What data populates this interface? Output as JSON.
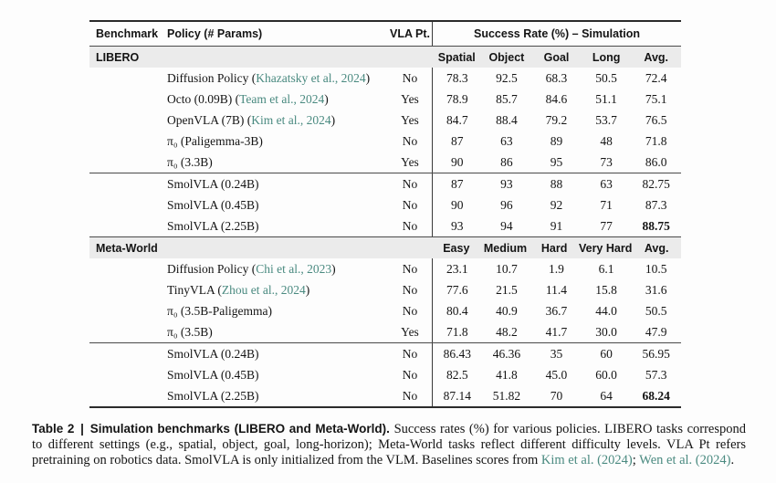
{
  "colors": {
    "link_teal": "#4a8a80",
    "band_gray": "#ebebeb"
  },
  "table": {
    "header": {
      "benchmark": "Benchmark",
      "policy": "Policy (# Params)",
      "vla": "VLA Pt.",
      "success": "Success Rate (%) – Simulation"
    },
    "sections": [
      {
        "band_label": "LIBERO",
        "columns": [
          "Spatial",
          "Object",
          "Goal",
          "Long",
          "Avg."
        ],
        "groups": [
          {
            "rows": [
              {
                "policy": "Diffusion Policy",
                "cite": "Khazatsky et al., 2024",
                "vla": "No",
                "values": [
                  "78.3",
                  "92.5",
                  "68.3",
                  "50.5",
                  "72.4"
                ]
              },
              {
                "policy": "Octo (0.09B)",
                "cite": "Team et al., 2024",
                "vla": "Yes",
                "values": [
                  "78.9",
                  "85.7",
                  "84.6",
                  "51.1",
                  "75.1"
                ]
              },
              {
                "policy": "OpenVLA (7B)",
                "cite": "Kim et al., 2024",
                "vla": "Yes",
                "values": [
                  "84.7",
                  "88.4",
                  "79.2",
                  "53.7",
                  "76.5"
                ]
              },
              {
                "policy": "π₀ (Paligemma-3B)",
                "vla": "No",
                "values": [
                  "87",
                  "63",
                  "89",
                  "48",
                  "71.8"
                ]
              },
              {
                "policy": "π₀ (3.3B)",
                "vla": "Yes",
                "values": [
                  "90",
                  "86",
                  "95",
                  "73",
                  "86.0"
                ]
              }
            ]
          },
          {
            "rows": [
              {
                "policy": "SmolVLA (0.24B)",
                "vla": "No",
                "values": [
                  "87",
                  "93",
                  "88",
                  "63",
                  "82.75"
                ]
              },
              {
                "policy": "SmolVLA (0.45B)",
                "vla": "No",
                "values": [
                  "90",
                  "96",
                  "92",
                  "71",
                  "87.3"
                ]
              },
              {
                "policy": "SmolVLA (2.25B)",
                "vla": "No",
                "values": [
                  "93",
                  "94",
                  "91",
                  "77",
                  "88.75"
                ],
                "bold_last": true
              }
            ]
          }
        ]
      },
      {
        "band_label": "Meta-World",
        "columns": [
          "Easy",
          "Medium",
          "Hard",
          "Very Hard",
          "Avg."
        ],
        "groups": [
          {
            "rows": [
              {
                "policy": "Diffusion Policy",
                "cite": "Chi et al., 2023",
                "vla": "No",
                "values": [
                  "23.1",
                  "10.7",
                  "1.9",
                  "6.1",
                  "10.5"
                ]
              },
              {
                "policy": "TinyVLA",
                "cite": "Zhou et al., 2024",
                "vla": "No",
                "values": [
                  "77.6",
                  "21.5",
                  "11.4",
                  "15.8",
                  "31.6"
                ]
              },
              {
                "policy": "π₀ (3.5B-Paligemma)",
                "vla": "No",
                "values": [
                  "80.4",
                  "40.9",
                  "36.7",
                  "44.0",
                  "50.5"
                ]
              },
              {
                "policy": "π₀ (3.5B)",
                "vla": "Yes",
                "values": [
                  "71.8",
                  "48.2",
                  "41.7",
                  "30.0",
                  "47.9"
                ]
              }
            ]
          },
          {
            "rows": [
              {
                "policy": "SmolVLA (0.24B)",
                "vla": "No",
                "values": [
                  "86.43",
                  "46.36",
                  "35",
                  "60",
                  "56.95"
                ]
              },
              {
                "policy": "SmolVLA (0.45B)",
                "vla": "No",
                "values": [
                  "82.5",
                  "41.8",
                  "45.0",
                  "60.0",
                  "57.3"
                ]
              },
              {
                "policy": "SmolVLA (2.25B)",
                "vla": "No",
                "values": [
                  "87.14",
                  "51.82",
                  "70",
                  "64",
                  "68.24"
                ],
                "bold_last": true
              }
            ]
          }
        ]
      }
    ]
  },
  "caption": {
    "label": "Table 2",
    "separator": "|",
    "title": "Simulation benchmarks (LIBERO and Meta-World).",
    "segments": [
      {
        "text": "Success rates (%) for various policies. LIBERO tasks correspond to different settings (e.g., spatial, object, goal, long-horizon); Meta-World tasks reflect different difficulty levels. VLA Pt refers pretraining on robotics data. SmolVLA is only initialized from the VLM. Baselines scores from "
      },
      {
        "text": "Kim et al. (2024)",
        "link": true
      },
      {
        "text": "; "
      },
      {
        "text": "Wen et al. (2024)",
        "link": true
      },
      {
        "text": "."
      }
    ]
  }
}
